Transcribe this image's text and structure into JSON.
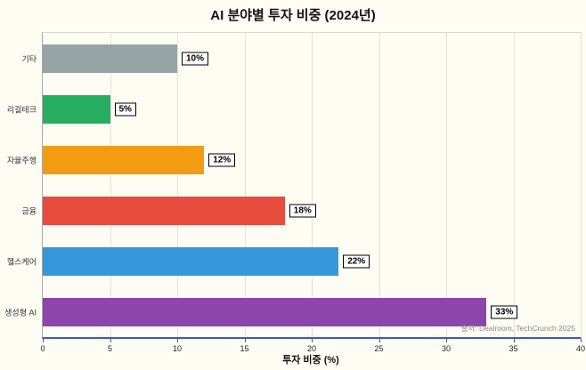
{
  "title": "AI 분야별 투자 비중 (2024년)",
  "xlabel": "투자 비중 (%)",
  "source": "출처: Dealroom, TechCrunch 2025",
  "chart_data": {
    "type": "bar",
    "orientation": "horizontal",
    "title": "AI 분야별 투자 비중 (2024년)",
    "xlabel": "투자 비중 (%)",
    "categories": [
      "기타",
      "리걸테크",
      "자율주행",
      "금융",
      "헬스케어",
      "생성형 AI"
    ],
    "values": [
      10,
      5,
      12,
      18,
      22,
      33
    ],
    "value_labels": [
      "10%",
      "5%",
      "12%",
      "18%",
      "22%",
      "33%"
    ],
    "colors": [
      "#95a5a6",
      "#27ae60",
      "#f39c12",
      "#e74c3c",
      "#3498db",
      "#8e44ad"
    ],
    "xlim": [
      0,
      40
    ],
    "xticks": [
      0,
      5,
      10,
      15,
      20,
      25,
      30,
      35,
      40
    ],
    "grid": true,
    "legend": false,
    "annotation": "출처: Dealroom, TechCrunch 2025"
  }
}
